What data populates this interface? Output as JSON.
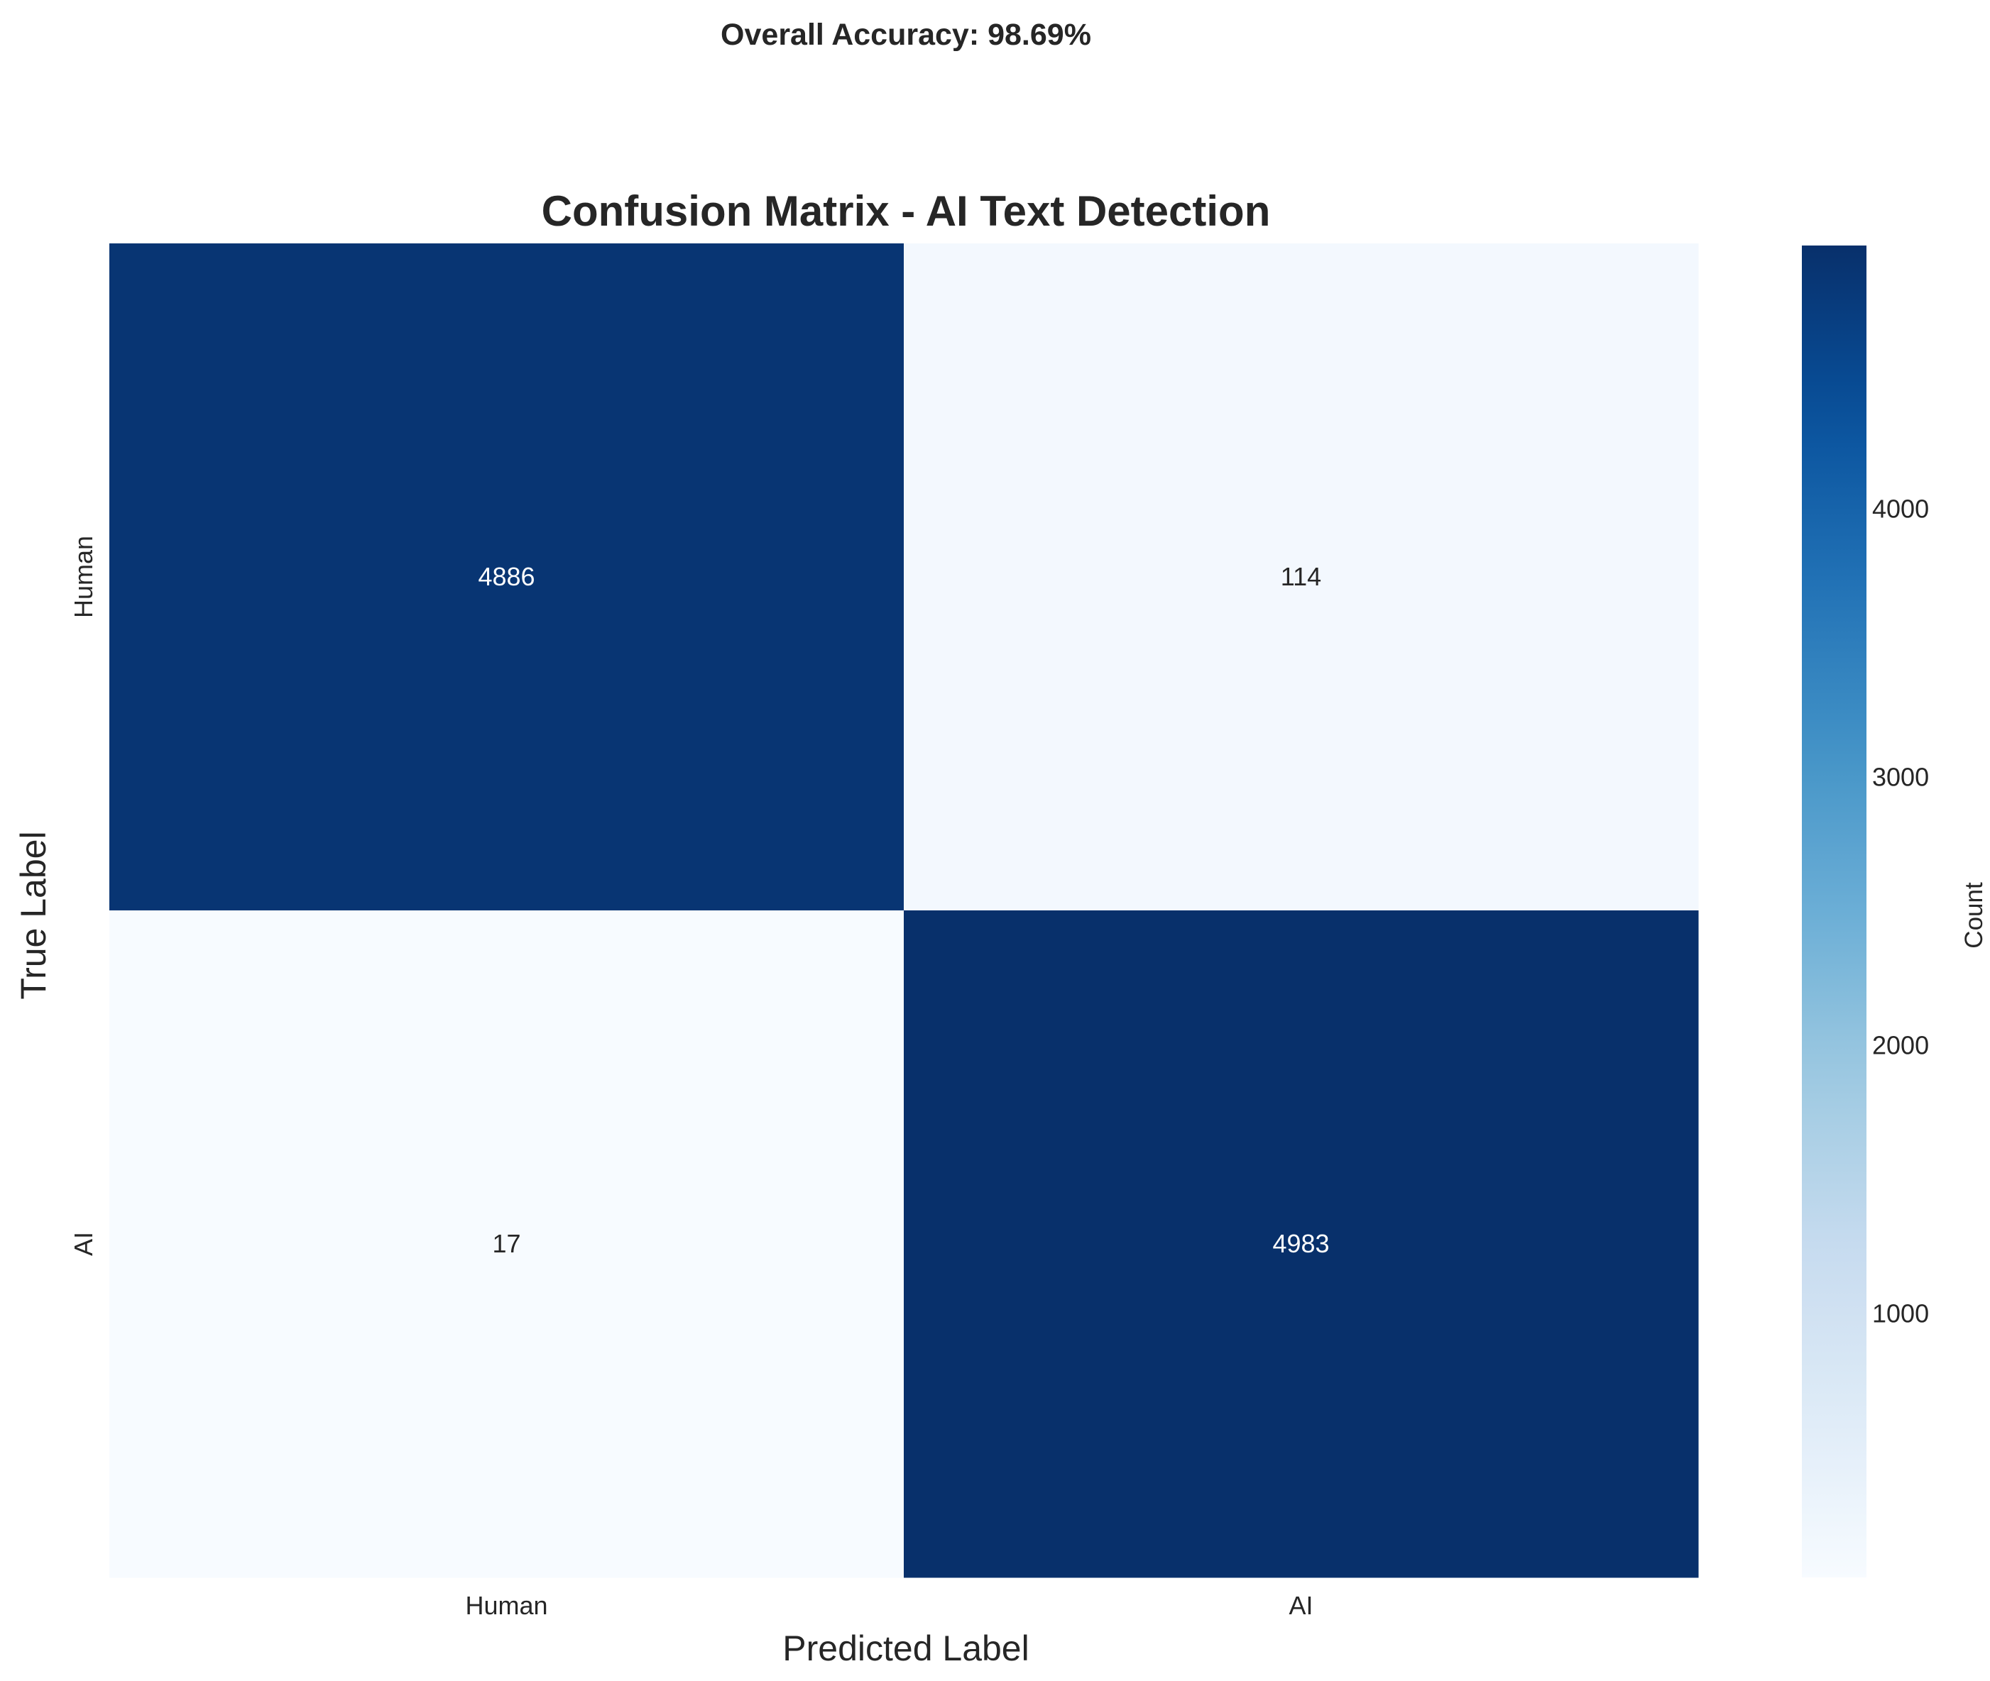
{
  "figure": {
    "suptitle": "Overall Accuracy: 98.69%"
  },
  "chart_data": {
    "type": "heatmap",
    "title": "Confusion Matrix - AI Text Detection",
    "xlabel": "Predicted Label",
    "ylabel": "True Label",
    "x_categories": [
      "Human",
      "AI"
    ],
    "y_categories": [
      "Human",
      "AI"
    ],
    "values": [
      [
        4886,
        114
      ],
      [
        17,
        4983
      ]
    ],
    "colormap": "Blues",
    "colorbar": {
      "label": "Count",
      "ticks": [
        1000,
        2000,
        3000,
        4000
      ],
      "tick_labels": [
        "1000",
        "2000",
        "3000",
        "4000"
      ],
      "range": [
        17,
        4983
      ]
    },
    "colors": {
      "low": "#f7fbff",
      "high": "#08306b",
      "text_on_dark": "#ffffff",
      "text_on_light": "#262626"
    }
  }
}
